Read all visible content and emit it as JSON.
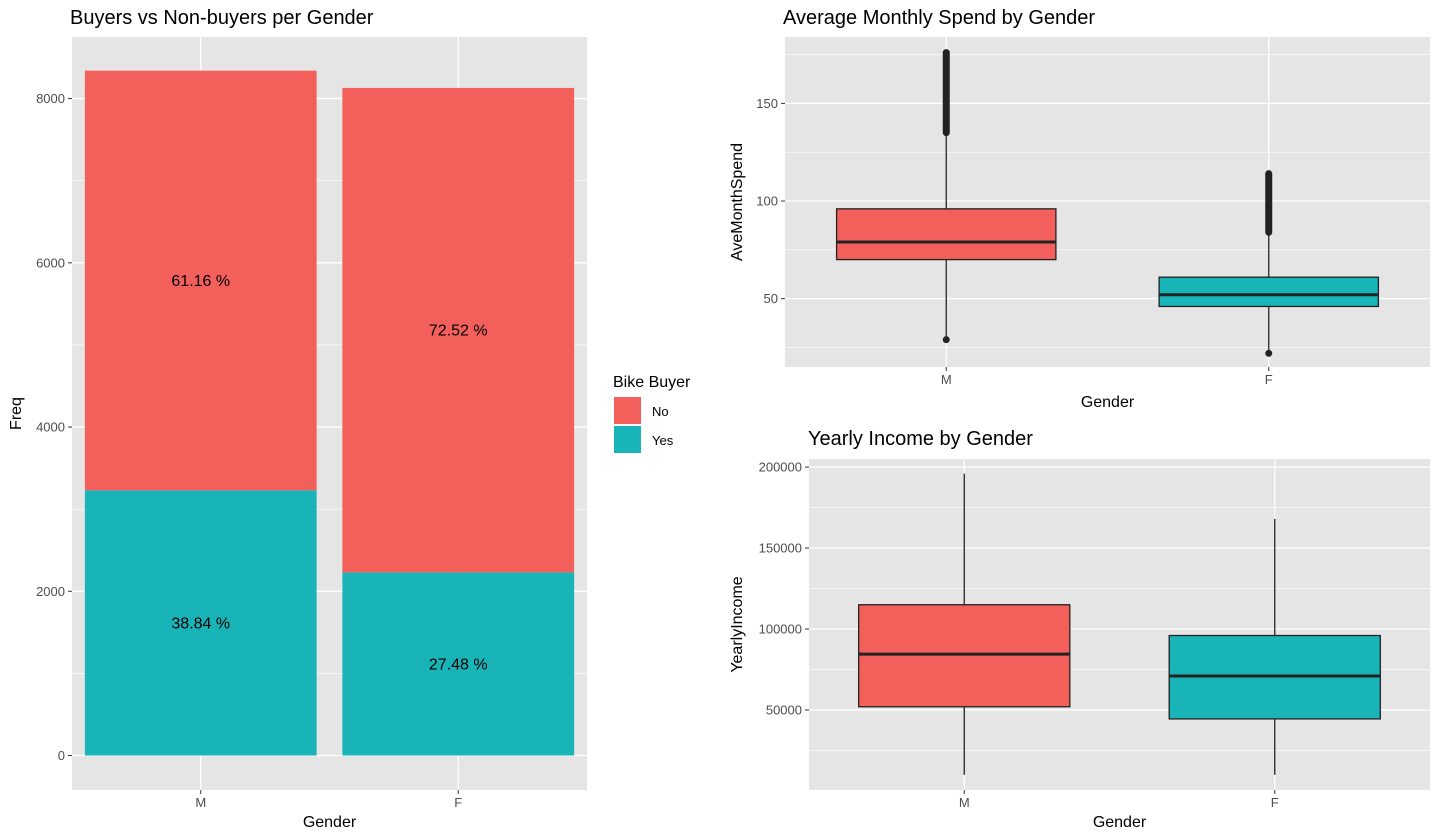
{
  "colors": {
    "no": "#F3605C",
    "yes": "#19B4B8",
    "panel": "#E5E5E5",
    "grid": "#FFFFFF",
    "tick": "#333333",
    "line": "#222222"
  },
  "chart_data": [
    {
      "type": "bar",
      "title": "Buyers vs Non-buyers per Gender",
      "xlabel": "Gender",
      "ylabel": "Freq",
      "categories": [
        "M",
        "F"
      ],
      "series": [
        {
          "name": "Yes",
          "values": [
            3230,
            2230
          ],
          "labels": [
            "38.84 %",
            "27.48 %"
          ],
          "color": "#19B4B8"
        },
        {
          "name": "No",
          "values": [
            5110,
            5900
          ],
          "labels": [
            "61.16 %",
            "72.52 %"
          ],
          "color": "#F3605C"
        }
      ],
      "ylim": [
        -420,
        8750
      ],
      "yticks": [
        0,
        2000,
        4000,
        6000,
        8000
      ],
      "ytick_labels": [
        "0",
        "2000",
        "4000",
        "6000",
        "8000"
      ],
      "stacked": true,
      "legend": {
        "title": "Bike Buyer",
        "entries": [
          "No",
          "Yes"
        ],
        "position": "right"
      }
    },
    {
      "type": "box",
      "title": "Average Monthly Spend by Gender",
      "xlabel": "Gender",
      "ylabel": "AveMonthSpend",
      "categories": [
        "M",
        "F"
      ],
      "boxes": [
        {
          "min": 29,
          "q1": 70,
          "median": 79,
          "q3": 96,
          "max": 135,
          "outliers_low": [
            29
          ],
          "outlier_range": [
            135,
            176
          ],
          "color": "#F3605C"
        },
        {
          "min": 22,
          "q1": 46,
          "median": 52,
          "q3": 61,
          "max": 84,
          "outliers_low": [
            22
          ],
          "outlier_range": [
            84,
            114
          ],
          "color": "#19B4B8"
        }
      ],
      "ylim": [
        15,
        184
      ],
      "yticks": [
        50,
        100,
        150
      ],
      "ytick_labels": [
        "50",
        "100",
        "150"
      ]
    },
    {
      "type": "box",
      "title": "Yearly Income by Gender",
      "xlabel": "Gender",
      "ylabel": "YearlyIncome",
      "categories": [
        "M",
        "F"
      ],
      "boxes": [
        {
          "min": 10000,
          "q1": 52000,
          "median": 84500,
          "q3": 115000,
          "max": 196000,
          "color": "#F3605C"
        },
        {
          "min": 10000,
          "q1": 44500,
          "median": 71000,
          "q3": 96000,
          "max": 168000,
          "color": "#19B4B8"
        }
      ],
      "ylim": [
        600,
        205000
      ],
      "yticks": [
        50000,
        100000,
        150000,
        200000
      ],
      "ytick_labels": [
        "50000",
        "100000",
        "150000",
        "200000"
      ]
    }
  ]
}
